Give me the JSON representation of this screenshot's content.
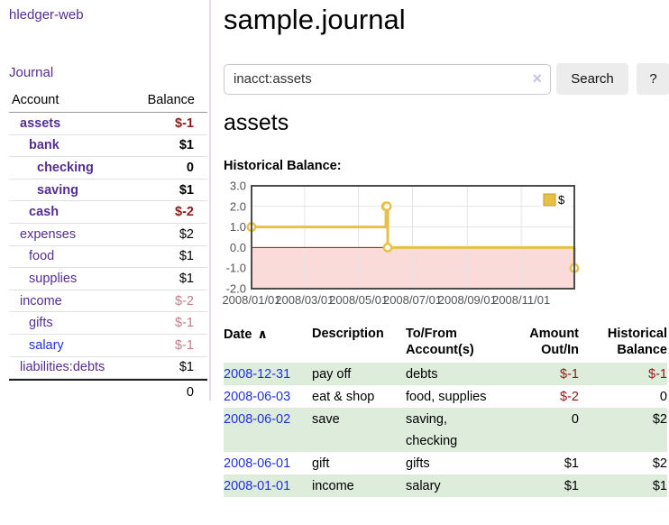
{
  "app": {
    "name": "hledger-web"
  },
  "sidebar": {
    "journal_label": "Journal",
    "table": {
      "header": {
        "account": "Account",
        "balance": "Balance"
      },
      "rows": [
        {
          "name": "assets",
          "balance": "$-1"
        },
        {
          "name": "bank",
          "balance": "$1"
        },
        {
          "name": "checking",
          "balance": "0"
        },
        {
          "name": "saving",
          "balance": "$1"
        },
        {
          "name": "cash",
          "balance": "$-2"
        },
        {
          "name": "expenses",
          "balance": "$2"
        },
        {
          "name": "food",
          "balance": "$1"
        },
        {
          "name": "supplies",
          "balance": "$1"
        },
        {
          "name": "income",
          "balance": "$-2"
        },
        {
          "name": "gifts",
          "balance": "$-1"
        },
        {
          "name": "salary",
          "balance": "$-1"
        },
        {
          "name": "liabilities:debts",
          "balance": "$1"
        }
      ],
      "total": "0"
    }
  },
  "main": {
    "title": "sample.journal",
    "search": {
      "value": "inacct:assets",
      "clear_glyph": "×",
      "button_label": "Search",
      "help_label": "?"
    },
    "account_title": "assets",
    "section_label": "Historical Balance:"
  },
  "chart_data": {
    "type": "line",
    "step": true,
    "title": "Historical Balance",
    "x_range": [
      "2008-01-01",
      "2008-12-31"
    ],
    "x_ticks": [
      "2008/01/01",
      "2008/03/01",
      "2008/05/01",
      "2008/07/01",
      "2008/09/01",
      "2008/11/01"
    ],
    "y_ticks": [
      3,
      2,
      1,
      0,
      -1,
      -2
    ],
    "ylim": [
      -2,
      3
    ],
    "grid": true,
    "legend": {
      "label": "$",
      "position": "top-right"
    },
    "series": [
      {
        "name": "$",
        "color": "#e8c045",
        "points": [
          {
            "date": "2008-01-01",
            "value": 1
          },
          {
            "date": "2008-06-01",
            "value": 2
          },
          {
            "date": "2008-06-02",
            "value": 2
          },
          {
            "date": "2008-06-03",
            "value": 0
          },
          {
            "date": "2008-12-31",
            "value": -1
          }
        ]
      }
    ],
    "negative_region_color": "#fbdada",
    "zero_line_color": "#8c1a1a",
    "gridline_color": "#e4e4e4",
    "border_color": "#4b4b4b",
    "tick_label_color": "#545454"
  },
  "register": {
    "headers": {
      "date": "Date",
      "sort_glyph": "∧",
      "description": "Description",
      "accounts": [
        "To/From",
        "Account(s)"
      ],
      "amount": [
        "Amount",
        "Out/In"
      ],
      "balance": [
        "Historical",
        "Balance"
      ]
    },
    "rows": [
      {
        "date": "2008-12-31",
        "description": "pay off",
        "accounts_lines": [
          "debts"
        ],
        "amount": "$-1",
        "balance": "$-1"
      },
      {
        "date": "2008-06-03",
        "description": "eat & shop",
        "accounts_lines": [
          "food, supplies"
        ],
        "amount": "$-2",
        "balance": "0"
      },
      {
        "date": "2008-06-02",
        "description": "save",
        "accounts_lines": [
          "saving,",
          "checking"
        ],
        "amount": "0",
        "balance": "$2"
      },
      {
        "date": "2008-06-01",
        "description": "gift",
        "accounts_lines": [
          "gifts"
        ],
        "amount": "$1",
        "balance": "$2"
      },
      {
        "date": "2008-01-01",
        "description": "income",
        "accounts_lines": [
          "salary"
        ],
        "amount": "$1",
        "balance": "$1"
      }
    ]
  },
  "colors": {
    "link_purple": "#552e91",
    "link_blue": "#2230dd",
    "negative_strong": "#8f1a1a",
    "negative_soft": "#bf7e87",
    "row_green": "#ddecdb",
    "button_bg": "#ececec",
    "chart_yellow": "#e8c045"
  }
}
